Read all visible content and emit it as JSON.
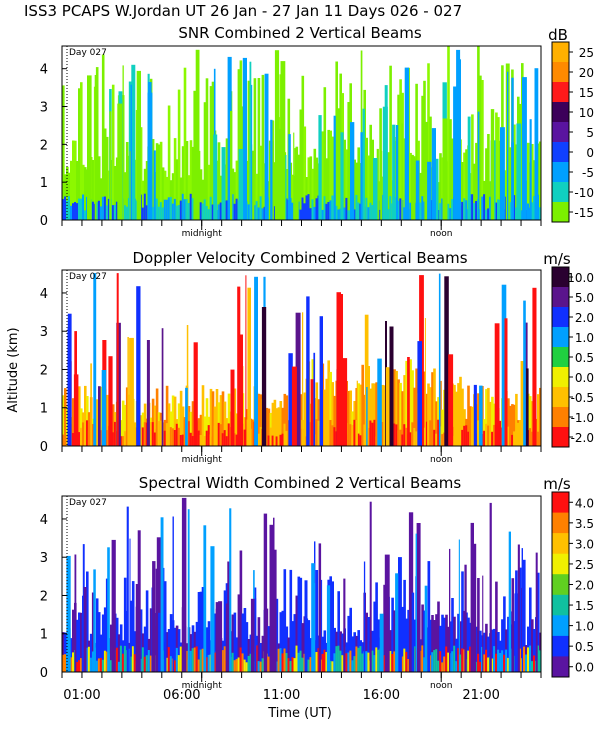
{
  "header": {
    "title": "ISS3 PCAPS W.Jordan UT  26 Jan - 27 Jan 11 Days 026 - 027"
  },
  "shared": {
    "ylabel": "Altitude (km)",
    "xlabel": "Time (UT)",
    "day_label": "Day 027",
    "midnight_label": "midnight",
    "noon_label": "noon",
    "time_ticks": [
      "01:00",
      "06:00",
      "11:00",
      "16:00",
      "21:00"
    ]
  },
  "chart_data": [
    {
      "type": "heatmap",
      "title": "SNR Combined 2 Vertical Beams",
      "unit": "dB",
      "x_range_hours": [
        0,
        24
      ],
      "ylim": [
        0,
        4.6
      ],
      "yticks": [
        0,
        1,
        2,
        3,
        4
      ],
      "colorbar_labels": [
        "25",
        "20",
        "15",
        "10",
        "5",
        "0",
        "-5",
        "-10",
        "-15"
      ],
      "colorbar_colors": [
        "#ffb000",
        "#ff8a00",
        "#ff1a1a",
        "#3c005a",
        "#5a14a0",
        "#1040ff",
        "#00a0ff",
        "#10d0c0",
        "#7cf000"
      ],
      "xticks_hours": [
        1,
        6,
        11,
        16,
        21
      ]
    },
    {
      "type": "heatmap",
      "title": "Doppler Velocity Combined 2 Vertical Beams",
      "unit": "m/s",
      "x_range_hours": [
        0,
        24
      ],
      "ylim": [
        0,
        4.6
      ],
      "yticks": [
        0,
        1,
        2,
        3,
        4
      ],
      "colorbar_labels": [
        "10.0",
        "5.0",
        "2.0",
        "1.0",
        "0.5",
        "0.0",
        "-0.5",
        "-1.0",
        "-2.0"
      ],
      "colorbar_colors": [
        "#2a0030",
        "#5a148c",
        "#1030ff",
        "#00a0ff",
        "#20d040",
        "#f0f000",
        "#ffc000",
        "#ff8000",
        "#ff1010"
      ],
      "xticks_hours": [
        1,
        6,
        11,
        16,
        21
      ]
    },
    {
      "type": "heatmap",
      "title": "Spectral Width Combined 2 Vertical Beams",
      "unit": "m/s",
      "x_range_hours": [
        0,
        24
      ],
      "ylim": [
        0,
        4.6
      ],
      "yticks": [
        0,
        1,
        2,
        3,
        4
      ],
      "colorbar_labels": [
        "4.0",
        "3.5",
        "3.0",
        "2.5",
        "2.0",
        "1.5",
        "1.0",
        "0.5",
        "0.0"
      ],
      "colorbar_colors": [
        "#ff1010",
        "#ff8000",
        "#ffc000",
        "#f0f000",
        "#60d020",
        "#10c0a0",
        "#00a0ff",
        "#1030ff",
        "#5a14a0"
      ],
      "xticks_hours": [
        1,
        6,
        11,
        16,
        21
      ]
    }
  ]
}
